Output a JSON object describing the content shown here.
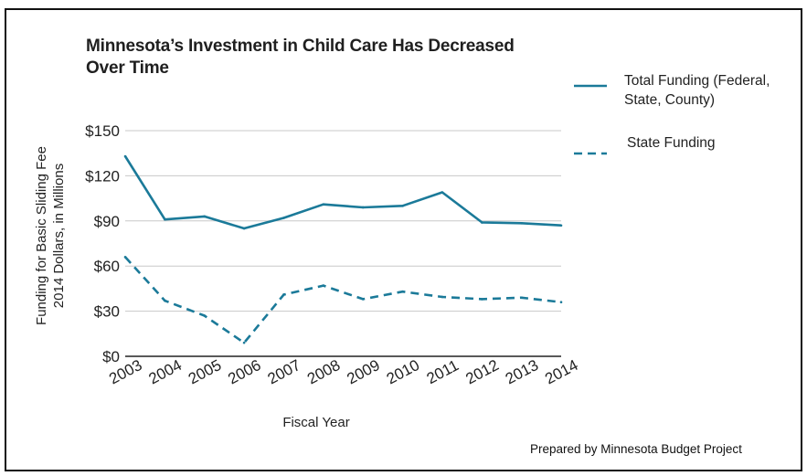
{
  "title": {
    "line1": "Minnesota’s Investment in Child Care Has Decreased",
    "line2": "Over Time"
  },
  "legend": {
    "total_line1": "Total Funding (Federal,",
    "total_line2": "State, County)",
    "state": "State Funding"
  },
  "footer": "Prepared by Minnesota Budget Project",
  "colors": {
    "line": "#1b7a99",
    "grid": "#c8c8c8",
    "axis": "#222222"
  },
  "chart_data": {
    "type": "line",
    "title": "Minnesota’s Investment in Child Care Has Decreased Over Time",
    "xlabel": "Fiscal Year",
    "ylabel_line1": "Funding for Basic Sliding Fee",
    "ylabel_line2": "2014 Dollars, in Millions",
    "categories": [
      "2003",
      "2004",
      "2005",
      "2006",
      "2007",
      "2008",
      "2009",
      "2010",
      "2011",
      "2012",
      "2013",
      "2014"
    ],
    "yticks": [
      "$0",
      "$30",
      "$60",
      "$90",
      "$120",
      "$150"
    ],
    "ylim": [
      0,
      150
    ],
    "grid": true,
    "legend_position": "right",
    "series": [
      {
        "name": "Total Funding (Federal, State, County)",
        "style": "solid",
        "values": [
          133,
          91,
          93,
          85,
          92,
          101,
          99,
          100,
          109,
          89,
          88.5,
          87
        ]
      },
      {
        "name": "State Funding",
        "style": "dashed",
        "values": [
          66,
          37,
          27,
          9,
          41,
          47,
          38,
          43,
          39.5,
          38,
          39,
          36
        ]
      }
    ]
  }
}
